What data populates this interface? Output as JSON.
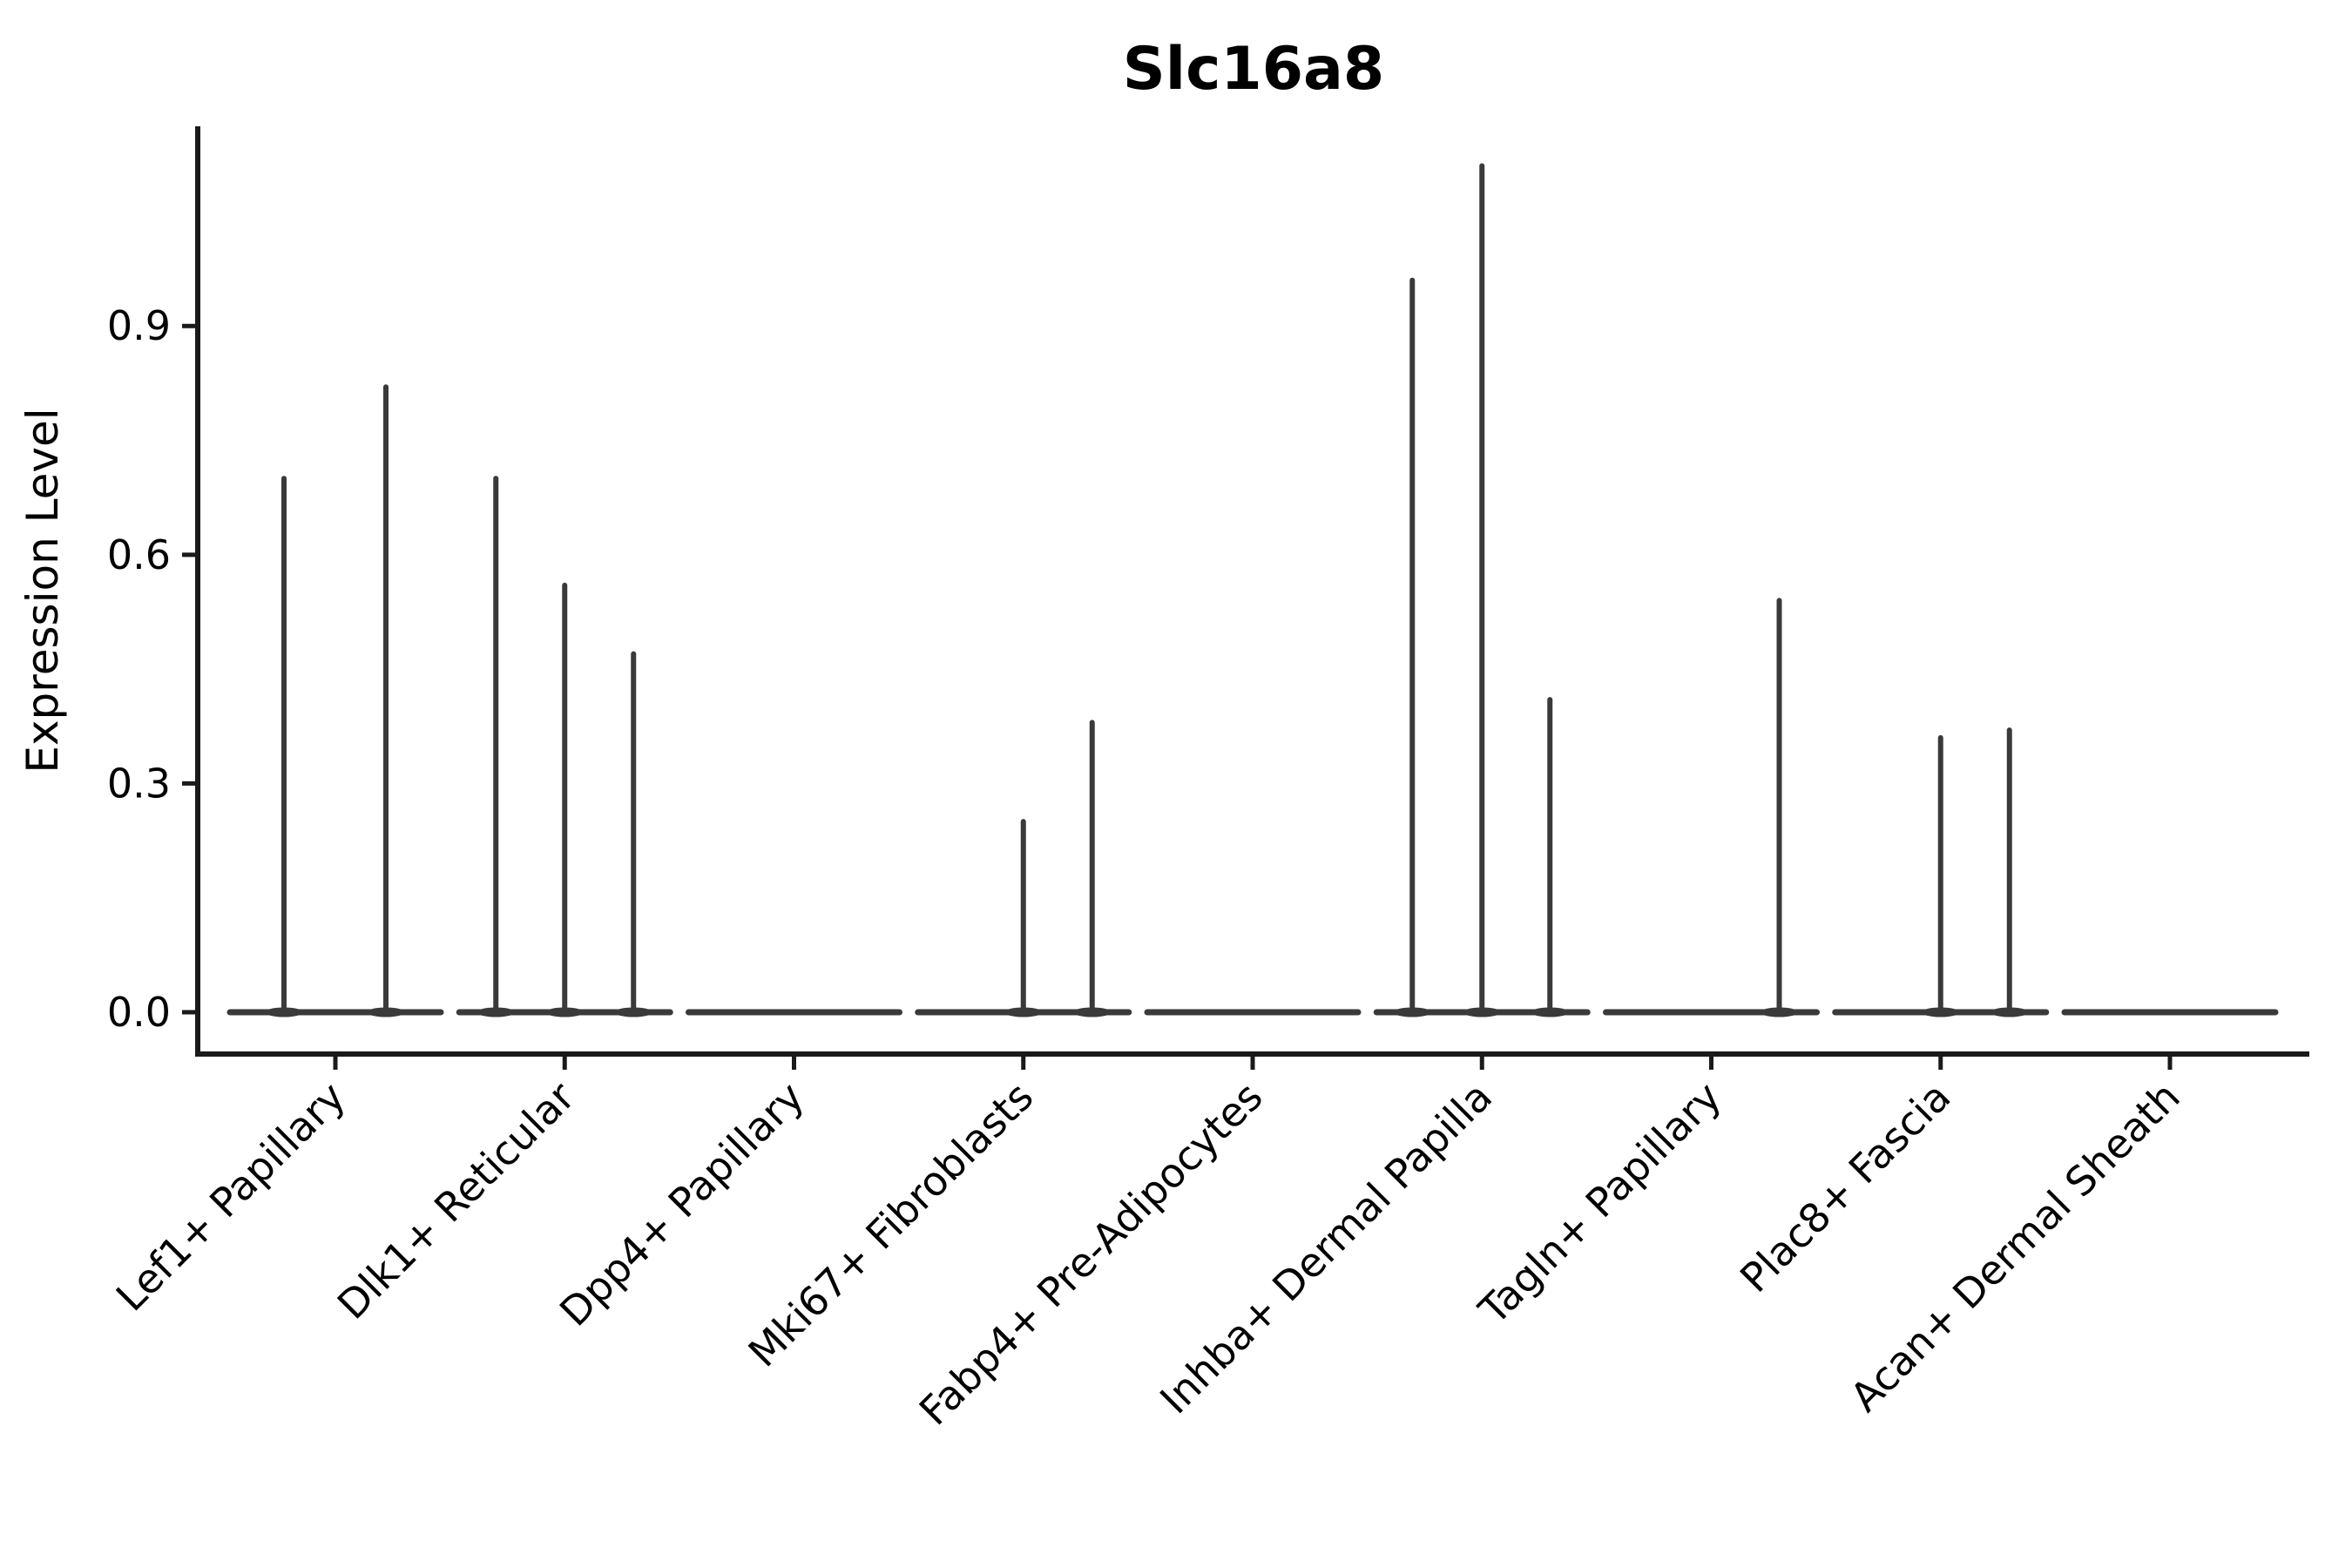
{
  "figure": {
    "title": "Slc16a8",
    "y_axis_label": "Expression Level",
    "background_color": "#ffffff",
    "axis_color": "#1a1a1a",
    "violin_color": "#3a3a3a"
  },
  "chart_data": {
    "type": "violin",
    "title": "Slc16a8",
    "xlabel": "",
    "ylabel": "Expression Level",
    "ylim": [
      -0.05,
      1.16
    ],
    "yticks": [
      0.0,
      0.3,
      0.6,
      0.9
    ],
    "ytick_labels": [
      "0.0",
      "0.3",
      "0.6",
      "0.9"
    ],
    "grid": false,
    "legend": "none",
    "x_tick_rotation_degrees": 45,
    "categories": [
      "Lef1+ Papillary",
      "Dlk1+ Reticular",
      "Dpp4+ Papillary",
      "Mki67+ Fibroblasts",
      "Fabp4+ Pre-Adipocytes",
      "Inhba+ Dermal Papilla",
      "Tagln+ Papillary",
      "Plac8+ Fascia",
      "Acan+ Dermal Sheath"
    ],
    "series": [
      {
        "category": "Lef1+ Papillary",
        "baseline_value": 0.0,
        "needles": [
          {
            "dx": -59,
            "value": 0.7
          },
          {
            "dx": 58,
            "value": 0.82
          }
        ]
      },
      {
        "category": "Dlk1+ Reticular",
        "baseline_value": 0.0,
        "needles": [
          {
            "dx": -79,
            "value": 0.7
          },
          {
            "dx": 0,
            "value": 0.56
          },
          {
            "dx": 79,
            "value": 0.47
          }
        ]
      },
      {
        "category": "Dpp4+ Papillary",
        "baseline_value": 0.0,
        "needles": []
      },
      {
        "category": "Mki67+ Fibroblasts",
        "baseline_value": 0.0,
        "needles": [
          {
            "dx": 0,
            "value": 0.25
          },
          {
            "dx": 79,
            "value": 0.38
          }
        ]
      },
      {
        "category": "Fabp4+ Pre-Adipocytes",
        "baseline_value": 0.0,
        "needles": []
      },
      {
        "category": "Inhba+ Dermal Papilla",
        "baseline_value": 0.0,
        "needles": [
          {
            "dx": -80,
            "value": 0.96
          },
          {
            "dx": 0,
            "value": 1.11
          },
          {
            "dx": 78,
            "value": 0.41
          }
        ]
      },
      {
        "category": "Tagln+ Papillary",
        "baseline_value": 0.0,
        "needles": [
          {
            "dx": 78,
            "value": 0.54
          }
        ]
      },
      {
        "category": "Plac8+ Fascia",
        "baseline_value": 0.0,
        "needles": [
          {
            "dx": 0,
            "value": 0.36
          },
          {
            "dx": 79,
            "value": 0.37
          }
        ]
      },
      {
        "category": "Acan+ Dermal Sheath",
        "baseline_value": 0.0,
        "needles": []
      }
    ]
  }
}
